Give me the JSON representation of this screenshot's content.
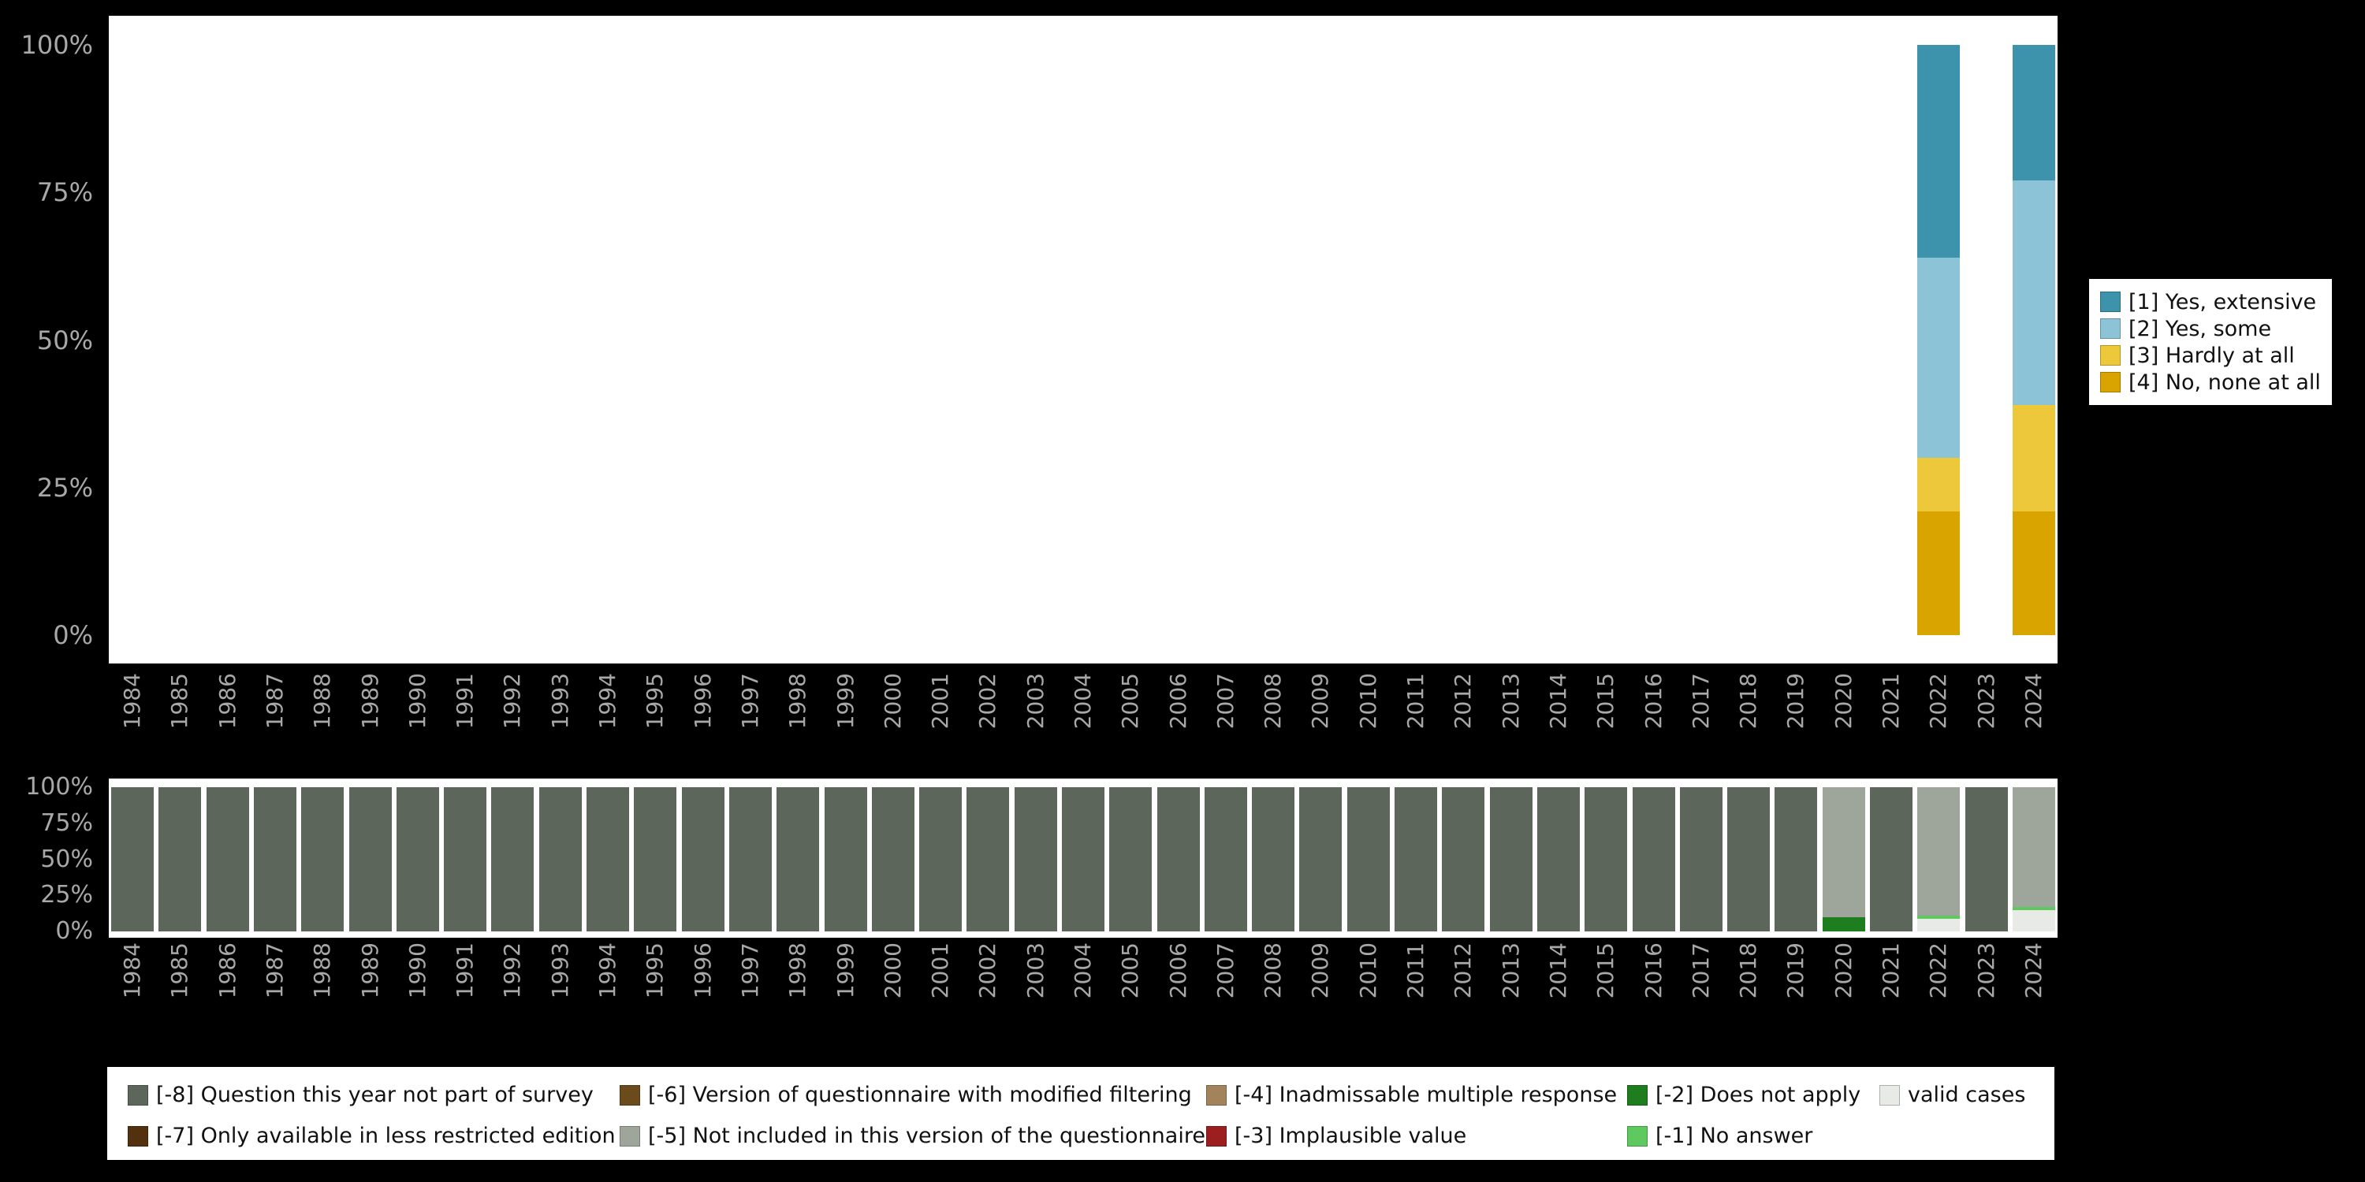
{
  "page": {
    "background": "#000000",
    "panel": "#ffffff",
    "axis_text_color": "#a8a8a8"
  },
  "chart_data": [
    {
      "name": "response-distribution",
      "type": "bar",
      "stacked": true,
      "unit": "percent",
      "title": "",
      "xlabel": "",
      "ylabel": "",
      "ylim": [
        0,
        100
      ],
      "grid": false,
      "legend_position": "right",
      "y_ticks": [
        "100%",
        "75%",
        "50%",
        "25%",
        "0%"
      ],
      "categories": [
        "1984",
        "1985",
        "1986",
        "1987",
        "1988",
        "1989",
        "1990",
        "1991",
        "1992",
        "1993",
        "1994",
        "1995",
        "1996",
        "1997",
        "1998",
        "1999",
        "2000",
        "2001",
        "2002",
        "2003",
        "2004",
        "2005",
        "2006",
        "2007",
        "2008",
        "2009",
        "2010",
        "2011",
        "2012",
        "2013",
        "2014",
        "2015",
        "2016",
        "2017",
        "2018",
        "2019",
        "2020",
        "2021",
        "2022",
        "2023",
        "2024"
      ],
      "series": [
        {
          "name": "[1] Yes, extensive",
          "color": "#3d93ac",
          "values": {
            "2022": 36,
            "2024": 23
          }
        },
        {
          "name": "[2] Yes, some",
          "color": "#8dc3d6",
          "values": {
            "2022": 34,
            "2024": 38
          }
        },
        {
          "name": "[3] Hardly at all",
          "color": "#ecc83a",
          "values": {
            "2022": 9,
            "2024": 18
          }
        },
        {
          "name": "[4] No, none at all",
          "color": "#d9a400",
          "values": {
            "2022": 21,
            "2024": 21
          }
        }
      ]
    },
    {
      "name": "missing-values",
      "type": "bar",
      "stacked": true,
      "unit": "percent",
      "title": "",
      "xlabel": "",
      "ylabel": "",
      "ylim": [
        0,
        100
      ],
      "grid": false,
      "legend_position": "bottom",
      "y_ticks": [
        "100%",
        "75%",
        "50%",
        "25%",
        "0%"
      ],
      "categories": [
        "1984",
        "1985",
        "1986",
        "1987",
        "1988",
        "1989",
        "1990",
        "1991",
        "1992",
        "1993",
        "1994",
        "1995",
        "1996",
        "1997",
        "1998",
        "1999",
        "2000",
        "2001",
        "2002",
        "2003",
        "2004",
        "2005",
        "2006",
        "2007",
        "2008",
        "2009",
        "2010",
        "2011",
        "2012",
        "2013",
        "2014",
        "2015",
        "2016",
        "2017",
        "2018",
        "2019",
        "2020",
        "2021",
        "2022",
        "2023",
        "2024"
      ],
      "series": [
        {
          "name": "[-8] Question this year not part of survey",
          "color": "#5d665b",
          "values": {
            "1984": 100,
            "1985": 100,
            "1986": 100,
            "1987": 100,
            "1988": 100,
            "1989": 100,
            "1990": 100,
            "1991": 100,
            "1992": 100,
            "1993": 100,
            "1994": 100,
            "1995": 100,
            "1996": 100,
            "1997": 100,
            "1998": 100,
            "1999": 100,
            "2000": 100,
            "2001": 100,
            "2002": 100,
            "2003": 100,
            "2004": 100,
            "2005": 100,
            "2006": 100,
            "2007": 100,
            "2008": 100,
            "2009": 100,
            "2010": 100,
            "2011": 100,
            "2012": 100,
            "2013": 100,
            "2014": 100,
            "2015": 100,
            "2016": 100,
            "2017": 100,
            "2018": 100,
            "2019": 100,
            "2021": 100,
            "2023": 100
          }
        },
        {
          "name": "[-7] Only available in less restricted edition",
          "color": "#53300e",
          "values": {}
        },
        {
          "name": "[-6] Version of questionnaire with modified filtering",
          "color": "#6b4a1c",
          "values": {}
        },
        {
          "name": "[-5] Not included in this version of the questionnaire",
          "color": "#9ea69b",
          "values": {
            "2020": 90,
            "2022": 89,
            "2024": 83
          }
        },
        {
          "name": "[-4] Inadmissable multiple response",
          "color": "#a3835c",
          "values": {}
        },
        {
          "name": "[-3] Implausible value",
          "color": "#9c1f1f",
          "values": {}
        },
        {
          "name": "[-2] Does not apply",
          "color": "#1e7d1e",
          "values": {
            "2020": 10
          }
        },
        {
          "name": "[-1] No answer",
          "color": "#5ec95e",
          "values": {
            "2022": 2,
            "2024": 2
          }
        },
        {
          "name": "valid cases",
          "color": "#e8eae6",
          "values": {
            "2022": 9,
            "2024": 15
          }
        }
      ]
    }
  ]
}
